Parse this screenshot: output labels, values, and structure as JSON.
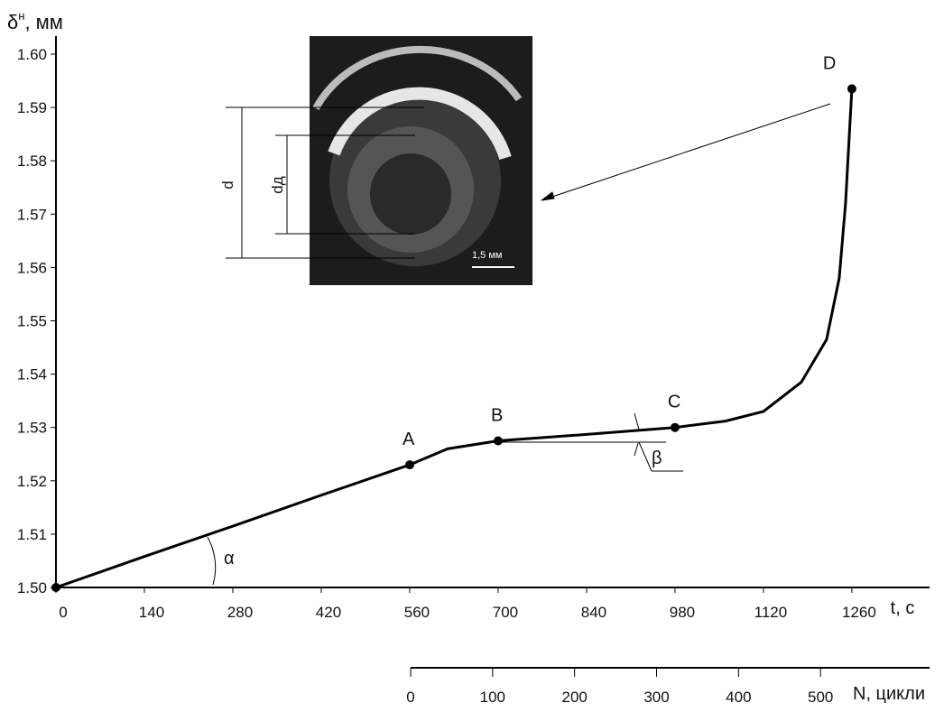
{
  "chart_data": {
    "type": "line",
    "y_label": {
      "base": "δ",
      "sup": "н",
      "unit": ", мм"
    },
    "x_label": "t, с",
    "x2_label": "N, цикли",
    "xlim": [
      0,
      1383
    ],
    "xticks": [
      0,
      140,
      280,
      420,
      560,
      700,
      840,
      980,
      1120,
      1260
    ],
    "ylim": [
      1.5,
      1.6
    ],
    "yticks": [
      {
        "value": 1.5,
        "label": "1.50"
      },
      1.51,
      1.52,
      1.53,
      1.54,
      1.55,
      1.56,
      1.57,
      1.58,
      1.59,
      {
        "value": 1.6,
        "label": "1.60"
      }
    ],
    "x2lim": [
      0,
      633
    ],
    "x2ticks": [
      0,
      100,
      200,
      300,
      400,
      500
    ],
    "series": [
      {
        "color": "#000000",
        "x": [
          0,
          140,
          280,
          420,
          560,
          620,
          700,
          840,
          980,
          1060,
          1120,
          1180,
          1220,
          1240,
          1250,
          1260
        ],
        "values": [
          1.5,
          1.5058,
          1.5115,
          1.5173,
          1.523,
          1.526,
          1.5275,
          1.5287,
          1.53,
          1.5312,
          1.533,
          1.5385,
          1.5465,
          1.558,
          1.572,
          1.5935
        ]
      }
    ],
    "points": [
      {
        "label": "A",
        "x": 560,
        "y": 1.523
      },
      {
        "label": "B",
        "x": 700,
        "y": 1.5275
      },
      {
        "label": "C",
        "x": 980,
        "y": 1.53
      },
      {
        "label": "D",
        "x": 1260,
        "y": 1.5935
      }
    ],
    "origin_point": {
      "x": 0,
      "y": 1.5
    },
    "annotations": {
      "alpha": "α",
      "beta": "β",
      "d": "d",
      "dd": "dд",
      "scale": "1,5 мм"
    }
  }
}
